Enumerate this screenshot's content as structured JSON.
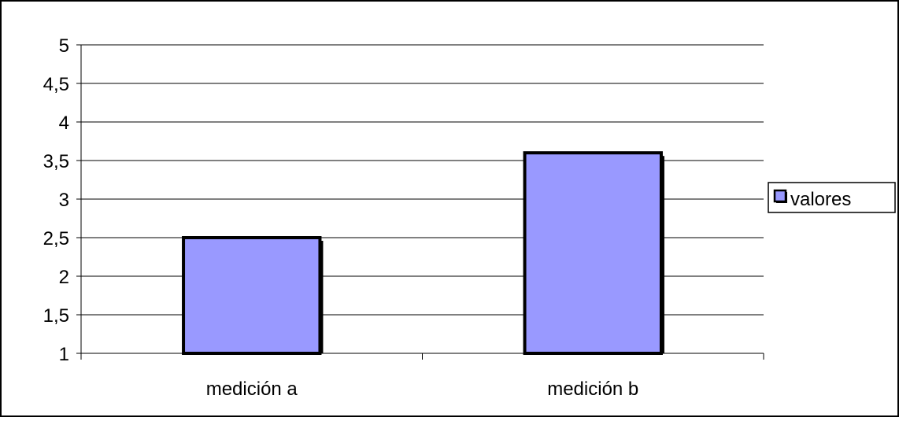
{
  "chart_data": {
    "type": "bar",
    "categories": [
      "medición a",
      "medición b"
    ],
    "series": [
      {
        "name": "valores",
        "values": [
          2.5,
          3.6
        ],
        "color": "#9999ff"
      }
    ],
    "yticks": [
      "1",
      "1,5",
      "2",
      "2,5",
      "3",
      "3,5",
      "4",
      "4,5",
      "5"
    ],
    "ylim": [
      1,
      5
    ],
    "grid": true,
    "legend_position": "right",
    "bar_outline_color": "#000000"
  }
}
